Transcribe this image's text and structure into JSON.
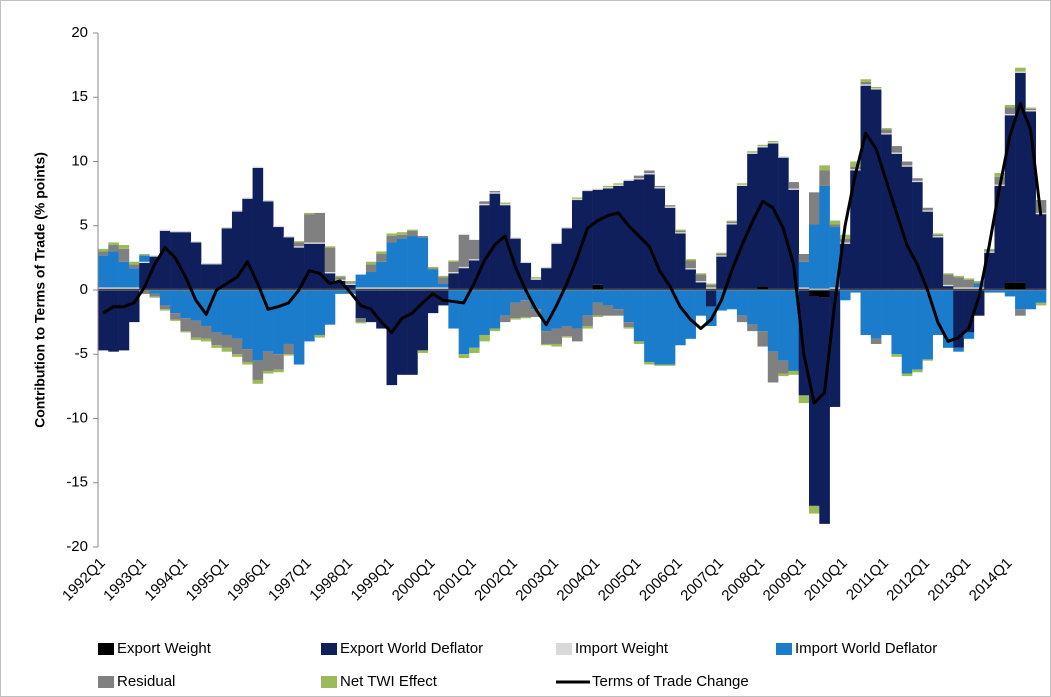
{
  "chart_data": {
    "type": "bar",
    "stacked": true,
    "y_label": "Contribution to Terms of Trade (% points)",
    "categories": [
      "1992Q1",
      null,
      null,
      null,
      "1993Q1",
      null,
      null,
      null,
      "1994Q1",
      null,
      null,
      null,
      "1995Q1",
      null,
      null,
      null,
      "1996Q1",
      null,
      null,
      null,
      "1997Q1",
      null,
      null,
      null,
      "1998Q1",
      null,
      null,
      null,
      "1999Q1",
      null,
      null,
      null,
      "2000Q1",
      null,
      null,
      null,
      "2001Q1",
      null,
      null,
      null,
      "2002Q1",
      null,
      null,
      null,
      "2003Q1",
      null,
      null,
      null,
      "2004Q1",
      null,
      null,
      null,
      "2005Q1",
      null,
      null,
      null,
      "2006Q1",
      null,
      null,
      null,
      "2007Q1",
      null,
      null,
      null,
      "2008Q1",
      null,
      null,
      null,
      "2009Q1",
      null,
      null,
      null,
      "2010Q1",
      null,
      null,
      null,
      "2011Q1",
      null,
      null,
      null,
      "2012Q1",
      null,
      null,
      null,
      "2013Q1",
      null,
      null,
      null,
      "2014Q1",
      null,
      null,
      null
    ],
    "ylim": [
      -20,
      20
    ],
    "yticks": [
      -20,
      -15,
      -10,
      -5,
      0,
      5,
      10,
      15,
      20
    ],
    "grid": false,
    "legend": "bottom",
    "series": [
      {
        "name": "Export Weight",
        "color": "#000000",
        "values": [
          0.1,
          0.1,
          0.1,
          0.1,
          0.1,
          0.1,
          0.1,
          0.1,
          0.1,
          0.1,
          0.1,
          0.1,
          0.1,
          0.1,
          0.1,
          0.1,
          0.1,
          0.1,
          0.1,
          0.1,
          0.1,
          0.1,
          0.1,
          0.1,
          0.1,
          0.1,
          0.1,
          0.1,
          0.1,
          0.1,
          0.1,
          0.1,
          0.1,
          0.1,
          0.1,
          0.1,
          0.1,
          0.1,
          0.1,
          0.1,
          0.1,
          0.1,
          0.1,
          0.1,
          0.1,
          0.1,
          0.1,
          0.1,
          0.4,
          0.1,
          0.1,
          0.1,
          0.1,
          0.1,
          0.1,
          0.1,
          0.1,
          0.1,
          0.1,
          0.1,
          0.1,
          0.1,
          0.1,
          0.1,
          0.3,
          0.1,
          0.1,
          0.1,
          0.1,
          -0.5,
          -0.6,
          0.1,
          0.1,
          0.1,
          0.1,
          0.1,
          0.1,
          0.1,
          0.1,
          0.1,
          0.1,
          0.1,
          0.1,
          0.1,
          0.1,
          0.1,
          0.1,
          0.1,
          0.6,
          0.6,
          0.1,
          0.1
        ]
      },
      {
        "name": "Export World Deflator",
        "color": "#0f1f5c",
        "values": [
          -4.7,
          -4.8,
          -4.7,
          -2.5,
          2.0,
          2.5,
          4.5,
          4.4,
          4.4,
          3.6,
          1.9,
          1.9,
          4.7,
          6.0,
          7.0,
          9.4,
          6.8,
          4.8,
          4.0,
          3.2,
          3.5,
          3.5,
          1.2,
          0.6,
          0.3,
          -2.2,
          -2.5,
          -3.0,
          -7.4,
          -6.6,
          -6.6,
          -4.7,
          -1.8,
          -1.2,
          1.2,
          1.6,
          2.2,
          6.5,
          7.4,
          6.5,
          3.9,
          2.0,
          0.7,
          1.6,
          3.5,
          4.7,
          6.9,
          7.6,
          7.4,
          7.8,
          8.0,
          8.4,
          8.5,
          8.9,
          7.8,
          6.3,
          4.3,
          1.5,
          0.5,
          -1.3,
          2.5,
          5.0,
          8.0,
          10.5,
          10.8,
          11.3,
          10.2,
          7.7,
          -8.2,
          -16.3,
          -17.6,
          -9.1,
          3.5,
          9.2,
          15.8,
          15.5,
          12.0,
          10.5,
          9.5,
          8.3,
          6.0,
          4.0,
          0.2,
          -4.5,
          -3.3,
          -2.0,
          2.8,
          8.0,
          13.0,
          16.3,
          13.8,
          5.8
        ]
      },
      {
        "name": "Import Weight",
        "color": "#d9d9d9",
        "values": [
          0.1,
          0.1,
          0.1,
          0.1,
          0.1,
          0.1,
          0.1,
          0.1,
          0.1,
          0.1,
          0.1,
          0.1,
          0.1,
          0.1,
          0.1,
          0.1,
          0.1,
          0.1,
          0.1,
          0.1,
          0.1,
          0.1,
          0.1,
          0.1,
          0.1,
          0.1,
          0.1,
          0.1,
          0.1,
          0.1,
          0.1,
          0.1,
          0.1,
          0.1,
          0.1,
          0.1,
          0.1,
          0.1,
          0.1,
          0.1,
          0.1,
          0.1,
          0.1,
          0.1,
          0.1,
          0.1,
          0.1,
          0.1,
          0.1,
          0.1,
          0.1,
          0.1,
          0.1,
          0.1,
          0.1,
          0.1,
          0.1,
          0.1,
          0.1,
          0.1,
          0.1,
          0.1,
          0.1,
          0.1,
          0.1,
          0.1,
          0.1,
          0.1,
          0.1,
          0.1,
          0.1,
          0.1,
          0.1,
          0.1,
          0.1,
          0.1,
          0.1,
          0.1,
          0.1,
          0.1,
          0.1,
          0.1,
          0.1,
          0.1,
          0.1,
          0.1,
          0.1,
          0.1,
          0.1,
          0.1,
          0.1,
          0.1
        ]
      },
      {
        "name": "Import World Deflator",
        "color": "#1c7ccc",
        "values": [
          2.5,
          2.8,
          2.0,
          1.5,
          0.5,
          -0.3,
          -1.2,
          -1.8,
          -2.2,
          -2.4,
          -2.8,
          -3.3,
          -3.5,
          -3.8,
          -4.6,
          -5.5,
          -4.8,
          -5.0,
          -4.2,
          -5.8,
          -4.0,
          -3.5,
          -2.7,
          -0.3,
          -0.3,
          1.0,
          1.2,
          2.0,
          3.5,
          3.8,
          4.0,
          3.9,
          1.4,
          0.3,
          -3.0,
          -5.0,
          -4.5,
          -3.5,
          -3.0,
          -2.0,
          -1.0,
          -0.8,
          -1.5,
          -3.2,
          -3.0,
          -2.8,
          -3.0,
          -2.0,
          -1.0,
          -1.2,
          -1.5,
          -2.5,
          -4.0,
          -5.6,
          -5.8,
          -5.8,
          -4.3,
          -3.8,
          -2.0,
          -1.5,
          -1.6,
          -1.5,
          -2.0,
          -2.7,
          -3.2,
          -4.8,
          -5.5,
          -6.3,
          2.0,
          5.0,
          8.0,
          4.7,
          -0.8,
          -0.2,
          -3.5,
          -3.8,
          -3.5,
          -5.0,
          -6.5,
          -6.2,
          -5.4,
          -3.5,
          -4.5,
          -0.3,
          -0.5,
          0.3,
          -0.2,
          -0.2,
          -0.5,
          -1.5,
          -1.5,
          -1.0
        ]
      },
      {
        "name": "Residual",
        "color": "#808080",
        "values": [
          0.3,
          0.5,
          1.0,
          0.3,
          -0.3,
          -0.2,
          -0.3,
          -0.5,
          -1.0,
          -1.3,
          -1.0,
          -1.0,
          -1.0,
          -1.2,
          -1.0,
          -1.5,
          -1.5,
          -1.2,
          -0.8,
          0.3,
          2.2,
          2.3,
          1.9,
          0.2,
          0.1,
          -0.3,
          0.6,
          0.6,
          0.5,
          0.3,
          0.4,
          0.1,
          0.1,
          0.5,
          0.8,
          2.5,
          1.5,
          0.2,
          0.1,
          -0.5,
          -1.2,
          -1.3,
          -0.6,
          -1.0,
          -1.2,
          -0.8,
          -1.0,
          -0.8,
          -1.0,
          -0.8,
          -0.5,
          -0.4,
          0.2,
          0.2,
          0.1,
          0.1,
          0.1,
          0.6,
          0.5,
          0.2,
          0.1,
          0.1,
          -0.5,
          -0.5,
          -1.2,
          -2.4,
          -1.0,
          0.5,
          0.6,
          2.5,
          1.2,
          0.2,
          0.3,
          0.2,
          0.2,
          -0.4,
          0.3,
          0.5,
          0.3,
          0.2,
          0.2,
          0.1,
          0.8,
          0.8,
          0.6,
          0.1,
          0.1,
          0.6,
          0.5,
          -0.5,
          0.1,
          1.0
        ]
      },
      {
        "name": "Net TWI Effect",
        "color": "#9bbb59",
        "values": [
          0.2,
          0.2,
          0.3,
          0.2,
          0.1,
          -0.1,
          -0.1,
          -0.1,
          -0.1,
          -0.2,
          -0.2,
          -0.2,
          -0.3,
          -0.2,
          -0.2,
          -0.3,
          -0.2,
          -0.2,
          -0.1,
          0.1,
          0.1,
          -0.2,
          0.1,
          0.1,
          0.1,
          -0.1,
          0.2,
          0.2,
          0.2,
          0.2,
          0.1,
          -0.2,
          0.1,
          0.1,
          0.1,
          -0.3,
          -0.4,
          -0.5,
          -0.2,
          0.1,
          -0.1,
          -0.1,
          0.1,
          -0.1,
          -0.2,
          -0.1,
          0.1,
          -0.2,
          -0.1,
          0.1,
          0.1,
          -0.1,
          -0.2,
          -0.2,
          -0.1,
          -0.1,
          0.1,
          0.1,
          0.1,
          0.1,
          0.1,
          0.1,
          0.1,
          0.1,
          0.1,
          0.1,
          -0.2,
          -0.3,
          -0.6,
          -0.6,
          0.4,
          0.3,
          0.3,
          0.4,
          0.2,
          0.1,
          0.1,
          -0.2,
          -0.2,
          -0.2,
          -0.1,
          0.1,
          0.1,
          0.1,
          0.1,
          0.1,
          0.1,
          0.3,
          0.2,
          0.3,
          0.1,
          -0.2
        ]
      },
      {
        "name": "Terms of Trade Change",
        "color": "#000000",
        "type": "line",
        "values": [
          -1.8,
          -1.3,
          -1.3,
          -1.0,
          0.2,
          2.0,
          3.3,
          2.5,
          1.0,
          -0.8,
          -1.9,
          0,
          0.5,
          1.0,
          2.2,
          0.5,
          -1.5,
          -1.3,
          -1.0,
          0,
          1.5,
          1.3,
          0.5,
          0.7,
          -0.2,
          -1.2,
          -1.5,
          -2.5,
          -3.3,
          -2.2,
          -1.8,
          -1.0,
          -0.3,
          -0.8,
          -0.9,
          -1.0,
          0.5,
          2.3,
          3.5,
          4.2,
          1.8,
          0,
          -1.5,
          -2.7,
          -1.2,
          0.5,
          2.5,
          4.8,
          5.4,
          5.8,
          6.0,
          5.0,
          4.2,
          3.4,
          1.5,
          0.3,
          -1.3,
          -2.3,
          -3.0,
          -2.3,
          -0.8,
          1.5,
          3.5,
          5.3,
          6.9,
          6.4,
          4.8,
          2.0,
          -5.0,
          -8.8,
          -8.0,
          -1.0,
          5.0,
          9.0,
          12.2,
          11.0,
          8.5,
          6.0,
          3.5,
          2.0,
          0,
          -2.5,
          -4.0,
          -3.7,
          -3.0,
          -0.5,
          3.5,
          8.0,
          12.0,
          14.5,
          12.5,
          5.8
        ]
      }
    ]
  }
}
